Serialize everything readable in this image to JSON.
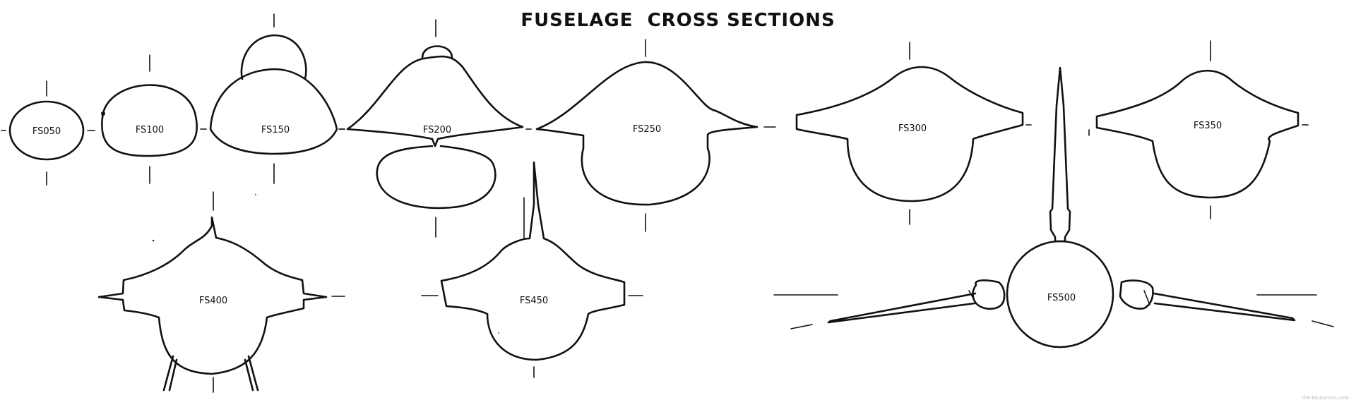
{
  "title": "FUSELAGE  CROSS SECTIONS",
  "sections": [
    {
      "label": "FS050"
    },
    {
      "label": "FS100"
    },
    {
      "label": "FS150"
    },
    {
      "label": "FS200"
    },
    {
      "label": "FS250"
    },
    {
      "label": "FS300"
    },
    {
      "label": "FS350"
    },
    {
      "label": "FS400"
    },
    {
      "label": "FS450"
    },
    {
      "label": "FS500"
    }
  ],
  "watermark": "the-blueprints.com"
}
